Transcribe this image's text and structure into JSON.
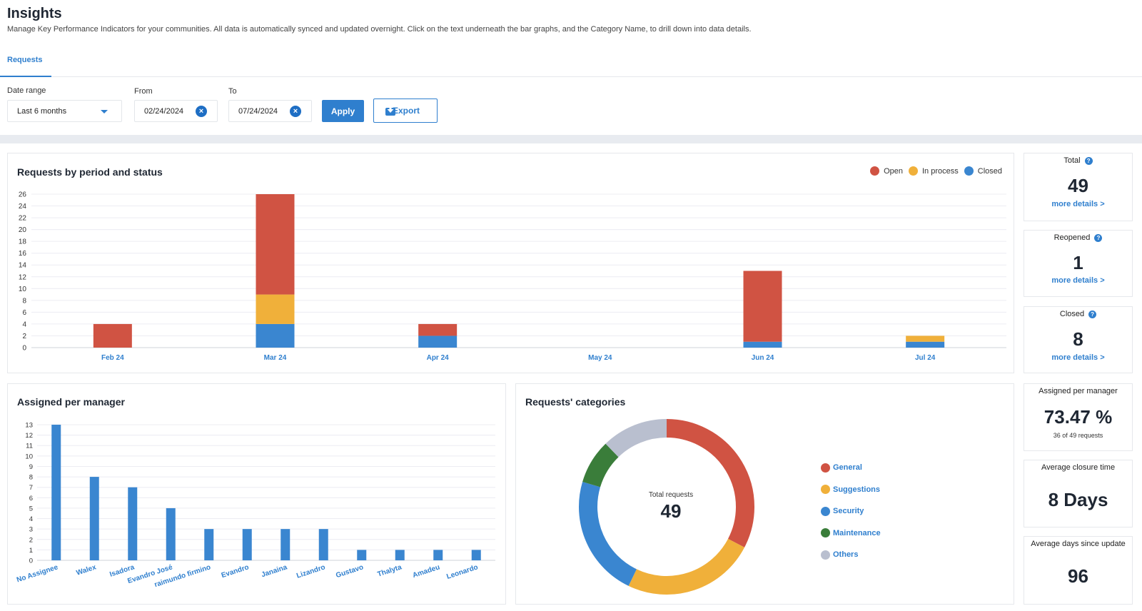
{
  "header": {
    "title": "Insights",
    "description": "Manage Key Performance Indicators for your communities. All data is automatically synced and updated overnight. Click on the text underneath the bar graphs, and the Category Name, to drill down into data details."
  },
  "tabs": [
    {
      "label": "Requests",
      "active": true
    }
  ],
  "filters": {
    "date_range_label": "Date range",
    "date_range_value": "Last 6 months",
    "from_label": "From",
    "from_value": "02/24/2024",
    "to_label": "To",
    "to_value": "07/24/2024",
    "apply_label": "Apply",
    "export_label": "Export"
  },
  "colors": {
    "accent": "#2f7fce",
    "open": "#d05343",
    "in_process": "#f0b03a",
    "closed": "#3a86d0",
    "maintenance": "#3a7d3a",
    "others": "#b9bfcf"
  },
  "period_chart": {
    "title": "Requests by period and status",
    "legend": [
      "Open",
      "In process",
      "Closed"
    ]
  },
  "manager_chart": {
    "title": "Assigned per manager"
  },
  "categories_chart": {
    "title": "Requests' categories",
    "center_label": "Total requests",
    "center_value": "49",
    "legend": [
      "General",
      "Suggestions",
      "Security",
      "Maintenance",
      "Others"
    ]
  },
  "kpis": {
    "total": {
      "label": "Total",
      "value": "49",
      "link": "more details >"
    },
    "reopened": {
      "label": "Reopened",
      "value": "1",
      "link": "more details >"
    },
    "closed": {
      "label": "Closed",
      "value": "8",
      "link": "more details >"
    },
    "assigned": {
      "label": "Assigned per manager",
      "value": "73.47 %",
      "sub": "36 of 49 requests"
    },
    "avg_closure": {
      "label": "Average closure time",
      "value": "8 Days"
    },
    "avg_days_update": {
      "label": "Average days since update",
      "value": "96"
    }
  },
  "chart_data": [
    {
      "type": "bar",
      "stacked": true,
      "title": "Requests by period and status",
      "categories": [
        "Feb 24",
        "Mar 24",
        "Apr 24",
        "May 24",
        "Jun 24",
        "Jul 24"
      ],
      "series": [
        {
          "name": "Closed",
          "values": [
            0,
            4,
            2,
            0,
            1,
            1
          ]
        },
        {
          "name": "In process",
          "values": [
            0,
            5,
            0,
            0,
            0,
            1
          ]
        },
        {
          "name": "Open",
          "values": [
            4,
            17,
            2,
            0,
            12,
            0
          ]
        }
      ],
      "yticks": [
        0,
        2,
        4,
        6,
        8,
        10,
        12,
        14,
        16,
        18,
        20,
        22,
        24,
        26
      ],
      "ylim": [
        0,
        26
      ],
      "legend_position": "top-right",
      "xlabel": "",
      "ylabel": ""
    },
    {
      "type": "bar",
      "title": "Assigned per manager",
      "categories": [
        "No Assignee",
        "Walex",
        "Isadora",
        "Evandro José",
        "raimundo firmino",
        "Evandro",
        "Janaina",
        "Lizandro",
        "Gustavo",
        "Thalyta",
        "Amadeu",
        "Leonardo"
      ],
      "values": [
        13,
        8,
        7,
        5,
        3,
        3,
        3,
        3,
        1,
        1,
        1,
        1
      ],
      "yticks": [
        0,
        1,
        2,
        3,
        4,
        5,
        6,
        7,
        8,
        9,
        10,
        11,
        12,
        13
      ],
      "ylim": [
        0,
        13
      ],
      "xlabel": "",
      "ylabel": ""
    },
    {
      "type": "pie",
      "donut": true,
      "title": "Requests' categories",
      "labels": [
        "General",
        "Suggestions",
        "Security",
        "Maintenance",
        "Others"
      ],
      "values": [
        16,
        12,
        11,
        4,
        6
      ],
      "total": 49
    }
  ]
}
